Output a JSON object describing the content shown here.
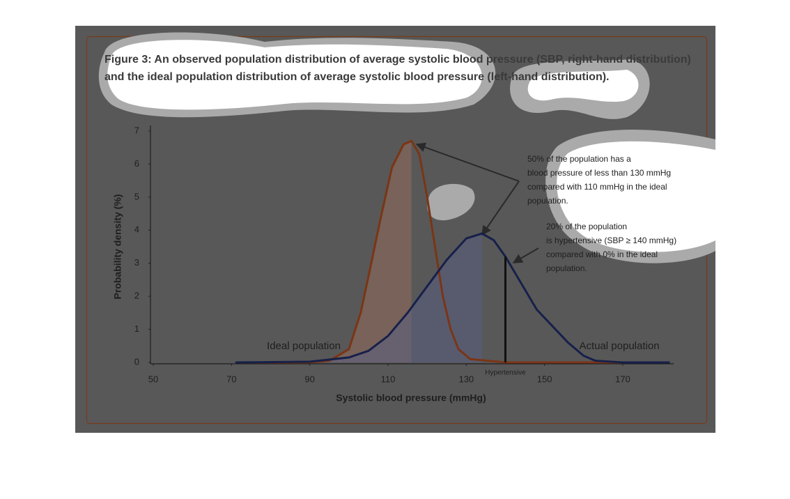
{
  "chart_data": {
    "type": "line",
    "title_lines": [
      "Figure 3: An observed population distribution of average systolic blood pressure (SBP, right-hand distribution)",
      "and the ideal population distribution of average systolic blood pressure (left-hand distribution)."
    ],
    "x_label": "Systolic blood pressure (mmHg)",
    "y_label": "Probability density (%)",
    "xlim": [
      50,
      183
    ],
    "ylim": [
      0,
      7.2
    ],
    "xticks": [
      50,
      70,
      90,
      110,
      130,
      150,
      170
    ],
    "yticks": [
      0,
      1,
      2,
      3,
      4,
      5,
      6,
      7
    ],
    "series": [
      {
        "name": "Ideal population",
        "color": "#7a3516",
        "x": [
          71,
          90,
          95,
          100,
          103,
          105,
          108,
          111,
          114,
          116,
          118,
          120,
          122,
          124,
          126,
          128,
          131,
          140,
          182
        ],
        "values": [
          0,
          0,
          0.05,
          0.4,
          1.5,
          2.6,
          4.3,
          5.9,
          6.6,
          6.7,
          6.3,
          5.0,
          3.5,
          2.0,
          1.0,
          0.4,
          0.1,
          0,
          0
        ]
      },
      {
        "name": "Actual population",
        "color": "#17204a",
        "x": [
          71,
          90,
          100,
          105,
          110,
          115,
          120,
          125,
          130,
          134,
          137,
          140,
          145,
          148,
          152,
          156,
          160,
          163,
          170,
          182
        ],
        "values": [
          0,
          0.02,
          0.15,
          0.35,
          0.8,
          1.5,
          2.3,
          3.1,
          3.75,
          3.9,
          3.7,
          3.2,
          2.2,
          1.6,
          1.1,
          0.6,
          0.2,
          0.05,
          0,
          0
        ]
      }
    ],
    "threshold": {
      "x": 140,
      "label": "Hypertensive"
    },
    "annotations": [
      [
        "50% of the population has a",
        "blood pressure of less than 130 mmHg",
        "compared with 110 mmHg in the ideal",
        "population."
      ],
      [
        "20% of the population",
        "is hypertensive (SBP  ≥ 140 mmHg)",
        "compared with 0% in the ideal",
        "population."
      ]
    ]
  }
}
